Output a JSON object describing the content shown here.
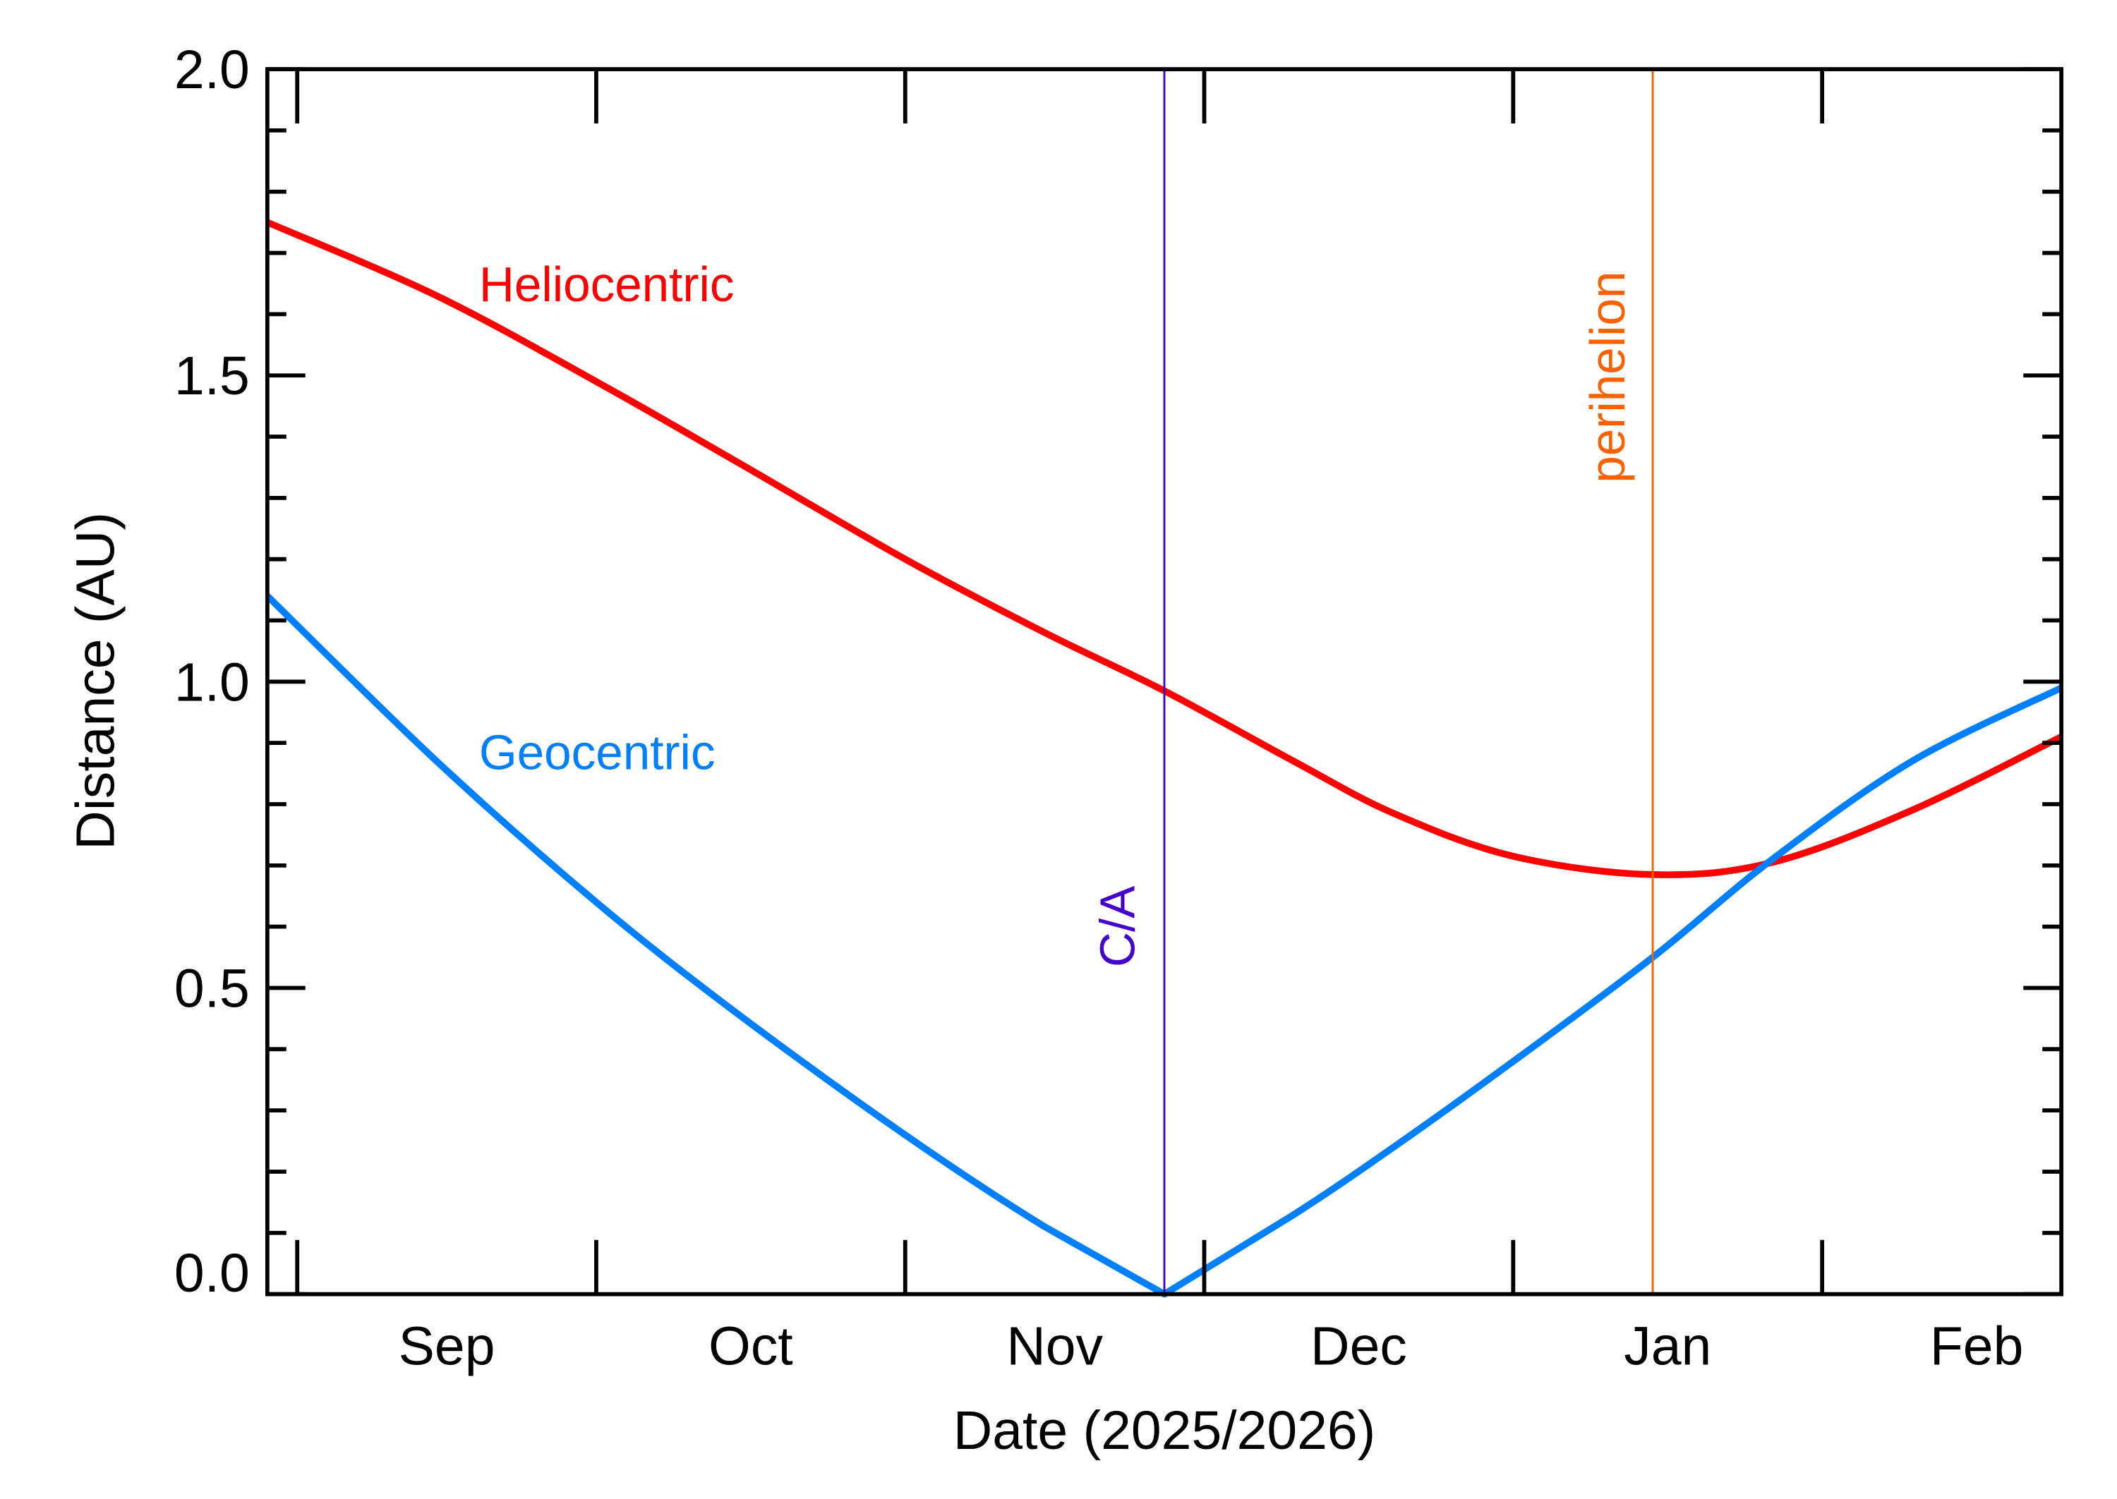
{
  "chart_data": {
    "type": "line",
    "xlabel": "Date (2025/2026)",
    "ylabel": "Distance (AU)",
    "xlim": [
      "2025-08-29",
      "2026-02-25"
    ],
    "ylim": [
      0,
      2.0
    ],
    "grid": false,
    "x_tick_labels": [
      {
        "label": "Sep",
        "date": "2025-09-01"
      },
      {
        "label": "Oct",
        "date": "2025-10-01"
      },
      {
        "label": "Nov",
        "date": "2025-11-01"
      },
      {
        "label": "Dec",
        "date": "2025-12-01"
      },
      {
        "label": "Jan",
        "date": "2026-01-01"
      },
      {
        "label": "Feb",
        "date": "2026-02-01"
      }
    ],
    "y_tick_labels": [
      "0.0",
      "0.5",
      "1.0",
      "1.5",
      "2.0"
    ],
    "x": [
      "2025-08-29",
      "2025-09-15",
      "2025-10-01",
      "2025-10-15",
      "2025-11-01",
      "2025-11-15",
      "2025-11-27",
      "2025-12-10",
      "2025-12-20",
      "2026-01-01",
      "2026-01-15",
      "2026-01-27",
      "2026-02-10",
      "2026-02-25"
    ],
    "series": [
      {
        "name": "Heliocentric",
        "color": "#ff0000",
        "values": [
          1.75,
          1.63,
          1.49,
          1.36,
          1.2,
          1.08,
          0.985,
          0.87,
          0.785,
          0.715,
          0.685,
          0.705,
          0.79,
          0.91
        ]
      },
      {
        "name": "Geocentric",
        "color": "#0080ff",
        "values": [
          1.14,
          0.87,
          0.64,
          0.46,
          0.26,
          0.11,
          0.0,
          0.13,
          0.24,
          0.38,
          0.55,
          0.71,
          0.87,
          0.99
        ]
      }
    ],
    "annotations": [
      {
        "label": "C/A",
        "date": "2025-11-27",
        "color": "#4400cc"
      },
      {
        "label": "perihelion",
        "date": "2026-01-15",
        "color": "#ff6000"
      }
    ]
  }
}
